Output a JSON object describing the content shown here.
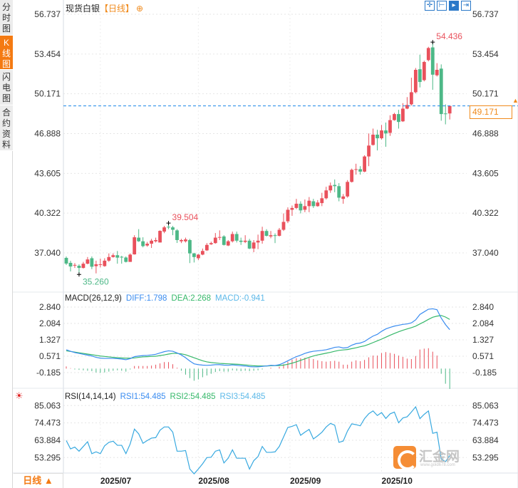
{
  "sidebar": {
    "tabs": [
      {
        "label": "分时图",
        "active": false
      },
      {
        "label": "K线图",
        "active": true
      },
      {
        "label": "闪电图",
        "active": false
      },
      {
        "label": "合约资料",
        "active": false
      }
    ]
  },
  "header": {
    "instrument": "现货白银",
    "period": "【日线】",
    "add_icon": "⊕"
  },
  "toolbar": {
    "icons": [
      "crosshair-icon",
      "range-icon",
      "zoom-fit-icon",
      "scroll-end-icon"
    ]
  },
  "price_tag": "49.171",
  "colors": {
    "up": "#e9515c",
    "down": "#4db887",
    "diff": "#3a8cf0",
    "dea": "#36b86a",
    "rsi": "#38a9e0",
    "last": "#1a86e8",
    "accent": "#f47a12"
  },
  "bottom": {
    "period_label": "日线 ▲"
  },
  "logo": {
    "name": "汇金网",
    "url": "www.gold678.com"
  },
  "chart_data": [
    {
      "type": "candlestick",
      "title": "现货白银",
      "y_ticks": [
        "56.737",
        "53.454",
        "50.171",
        "46.888",
        "43.605",
        "40.322",
        "37.040"
      ],
      "ylim": [
        35.0,
        57.9
      ],
      "annotations": {
        "high": "54.436",
        "high_index": 86,
        "local_high": "39.504",
        "local_high_index": 24,
        "low": "35.260",
        "low_index": 3
      },
      "last": 49.171,
      "x_labels": [
        {
          "label": "2025/07",
          "index": 8
        },
        {
          "label": "2025/08",
          "index": 31
        },
        {
          "label": "2025/09",
          "index": 52.5
        },
        {
          "label": "2025/10",
          "index": 74
        }
      ],
      "ohlc": [
        [
          36.63,
          36.75,
          36.04,
          36.16
        ],
        [
          36.22,
          36.39,
          35.51,
          35.92
        ],
        [
          36.0,
          36.2,
          35.8,
          36.05
        ],
        [
          35.98,
          36.1,
          35.26,
          35.8
        ],
        [
          35.8,
          36.3,
          35.75,
          36.15
        ],
        [
          36.15,
          36.7,
          36.1,
          36.5
        ],
        [
          36.6,
          36.75,
          35.7,
          35.9
        ],
        [
          35.95,
          36.4,
          35.35,
          36.1
        ],
        [
          36.05,
          36.57,
          35.85,
          36.1
        ],
        [
          35.95,
          36.6,
          35.9,
          36.4
        ],
        [
          36.4,
          37.0,
          36.3,
          36.7
        ],
        [
          36.7,
          37.0,
          36.65,
          36.85
        ],
        [
          36.85,
          37.2,
          36.15,
          36.65
        ],
        [
          36.72,
          36.8,
          36.15,
          36.68
        ],
        [
          36.66,
          36.75,
          36.25,
          36.3
        ],
        [
          36.3,
          37.0,
          36.3,
          36.9
        ],
        [
          36.92,
          38.5,
          36.9,
          38.33
        ],
        [
          38.3,
          39.0,
          37.95,
          38.0
        ],
        [
          38.0,
          38.33,
          37.5,
          37.6
        ],
        [
          37.65,
          37.95,
          37.55,
          37.8
        ],
        [
          37.8,
          38.2,
          37.45,
          38.05
        ],
        [
          38.0,
          38.3,
          37.9,
          38.1
        ],
        [
          37.9,
          38.9,
          37.9,
          38.86
        ],
        [
          38.8,
          39.27,
          38.67,
          39.15
        ],
        [
          39.2,
          39.504,
          39.0,
          39.15
        ],
        [
          39.15,
          39.27,
          38.5,
          38.95
        ],
        [
          38.9,
          39.0,
          37.86,
          38.1
        ],
        [
          38.0,
          38.2,
          37.85,
          38.1
        ],
        [
          38.0,
          38.3,
          37.9,
          38.15
        ],
        [
          38.1,
          38.2,
          36.2,
          37.0
        ],
        [
          37.0,
          37.05,
          36.25,
          36.7
        ],
        [
          36.6,
          36.95,
          36.45,
          36.9
        ],
        [
          36.9,
          37.4,
          36.85,
          37.2
        ],
        [
          37.25,
          37.85,
          37.2,
          37.7
        ],
        [
          37.75,
          37.97,
          37.7,
          37.85
        ],
        [
          37.85,
          38.68,
          37.8,
          38.3
        ],
        [
          38.3,
          38.9,
          38.1,
          38.35
        ],
        [
          38.4,
          38.5,
          37.65,
          37.7
        ],
        [
          37.65,
          38.1,
          37.6,
          38.0
        ],
        [
          38.0,
          38.8,
          37.9,
          38.6
        ],
        [
          38.6,
          38.8,
          37.9,
          38.05
        ],
        [
          38.05,
          38.3,
          37.7,
          37.95
        ],
        [
          37.95,
          38.5,
          37.85,
          38.05
        ],
        [
          38.05,
          38.2,
          37.35,
          37.4
        ],
        [
          37.4,
          38.1,
          37.1,
          37.9
        ],
        [
          37.9,
          38.55,
          37.35,
          38.05
        ],
        [
          38.05,
          39.2,
          37.8,
          38.85
        ],
        [
          38.85,
          39.0,
          38.4,
          38.45
        ],
        [
          38.4,
          38.85,
          38.25,
          38.5
        ],
        [
          38.5,
          38.65,
          37.85,
          38.45
        ],
        [
          38.45,
          39.1,
          38.4,
          38.95
        ],
        [
          38.95,
          40.3,
          38.85,
          39.6
        ],
        [
          39.65,
          40.8,
          39.5,
          40.6
        ],
        [
          40.6,
          40.95,
          40.1,
          40.75
        ],
        [
          40.75,
          41.5,
          40.65,
          41.1
        ],
        [
          41.1,
          41.3,
          40.3,
          40.55
        ],
        [
          40.6,
          41.45,
          40.4,
          40.9
        ],
        [
          40.9,
          41.65,
          40.4,
          41.35
        ],
        [
          41.3,
          41.5,
          40.75,
          40.9
        ],
        [
          40.9,
          41.4,
          40.85,
          41.2
        ],
        [
          41.15,
          42.0,
          40.9,
          41.55
        ],
        [
          41.55,
          42.5,
          41.45,
          42.2
        ],
        [
          42.2,
          42.85,
          42.0,
          42.6
        ],
        [
          42.65,
          43.1,
          42.05,
          42.55
        ],
        [
          42.55,
          42.8,
          41.3,
          41.6
        ],
        [
          41.5,
          41.9,
          41.1,
          41.7
        ],
        [
          41.7,
          43.05,
          41.6,
          42.9
        ],
        [
          42.9,
          44.0,
          42.85,
          43.9
        ],
        [
          43.9,
          44.4,
          43.5,
          43.95
        ],
        [
          43.95,
          44.2,
          43.5,
          43.75
        ],
        [
          43.75,
          45.1,
          43.7,
          45.0
        ],
        [
          45.0,
          46.9,
          44.2,
          45.9
        ],
        [
          45.95,
          47.3,
          45.9,
          46.8
        ],
        [
          46.8,
          47.2,
          45.5,
          46.5
        ],
        [
          46.5,
          47.6,
          46.4,
          47.15
        ],
        [
          47.15,
          47.8,
          45.8,
          46.9
        ],
        [
          46.95,
          48.4,
          46.7,
          48.0
        ],
        [
          48.0,
          48.6,
          47.95,
          48.5
        ],
        [
          48.5,
          48.85,
          47.3,
          47.85
        ],
        [
          47.9,
          49.4,
          47.85,
          48.95
        ],
        [
          48.95,
          49.9,
          48.9,
          49.25
        ],
        [
          49.3,
          51.5,
          49.2,
          50.3
        ],
        [
          50.3,
          52.3,
          50.2,
          52.15
        ],
        [
          52.2,
          53.4,
          50.7,
          51.15
        ],
        [
          51.3,
          52.9,
          51.2,
          52.8
        ],
        [
          52.95,
          54.05,
          52.85,
          53.95
        ],
        [
          54.0,
          54.436,
          50.5,
          51.75
        ],
        [
          51.7,
          52.7,
          51.6,
          52.15
        ],
        [
          52.25,
          52.6,
          47.95,
          48.5
        ],
        [
          48.55,
          49.3,
          47.65,
          48.5
        ],
        [
          48.55,
          49.2,
          48.05,
          49.171
        ]
      ]
    },
    {
      "type": "line",
      "title": "MACD(26,12,9)",
      "legend": [
        {
          "label": "DIFF:1.798"
        },
        {
          "label": "DEA:2.268"
        },
        {
          "label": "MACD:-0.941"
        }
      ],
      "y_ticks": [
        "2.840",
        "2.084",
        "1.327",
        "0.571",
        "-0.185"
      ],
      "diff": [
        0.87,
        0.8,
        0.74,
        0.7,
        0.66,
        0.62,
        0.58,
        0.52,
        0.48,
        0.47,
        0.47,
        0.47,
        0.46,
        0.44,
        0.41,
        0.46,
        0.55,
        0.58,
        0.6,
        0.61,
        0.63,
        0.66,
        0.72,
        0.78,
        0.82,
        0.8,
        0.72,
        0.63,
        0.5,
        0.35,
        0.22,
        0.18,
        0.16,
        0.15,
        0.16,
        0.18,
        0.18,
        0.16,
        0.15,
        0.17,
        0.15,
        0.13,
        0.12,
        0.09,
        0.08,
        0.08,
        0.1,
        0.12,
        0.15,
        0.14,
        0.18,
        0.26,
        0.36,
        0.46,
        0.55,
        0.62,
        0.7,
        0.76,
        0.8,
        0.82,
        0.84,
        0.87,
        0.92,
        0.98,
        1.0,
        0.95,
        0.97,
        1.08,
        1.15,
        1.18,
        1.25,
        1.38,
        1.5,
        1.58,
        1.72,
        1.83,
        1.9,
        1.96,
        2.0,
        2.04,
        2.06,
        2.11,
        2.25,
        2.5,
        2.62,
        2.74,
        2.76,
        2.72,
        2.33,
        2.03,
        1.798
      ],
      "dea": [
        0.82,
        0.79,
        0.76,
        0.73,
        0.7,
        0.67,
        0.64,
        0.61,
        0.58,
        0.56,
        0.54,
        0.52,
        0.5,
        0.49,
        0.48,
        0.48,
        0.49,
        0.52,
        0.54,
        0.55,
        0.56,
        0.57,
        0.6,
        0.63,
        0.67,
        0.7,
        0.7,
        0.68,
        0.64,
        0.57,
        0.5,
        0.43,
        0.36,
        0.31,
        0.28,
        0.26,
        0.24,
        0.23,
        0.22,
        0.21,
        0.2,
        0.19,
        0.17,
        0.15,
        0.13,
        0.12,
        0.12,
        0.12,
        0.13,
        0.14,
        0.14,
        0.16,
        0.2,
        0.25,
        0.31,
        0.38,
        0.45,
        0.52,
        0.58,
        0.63,
        0.67,
        0.71,
        0.75,
        0.8,
        0.84,
        0.86,
        0.88,
        0.92,
        0.96,
        1.01,
        1.05,
        1.12,
        1.2,
        1.28,
        1.36,
        1.45,
        1.54,
        1.62,
        1.7,
        1.77,
        1.83,
        1.89,
        1.96,
        2.06,
        2.16,
        2.27,
        2.37,
        2.42,
        2.45,
        2.38,
        2.268
      ]
    },
    {
      "type": "line",
      "title": "RSI(14,14,14)",
      "legend": [
        {
          "label": "RSI1:54.485"
        },
        {
          "label": "RSI2:54.485"
        },
        {
          "label": "RSI3:54.485"
        }
      ],
      "y_ticks": [
        "85.063",
        "74.473",
        "63.884",
        "53.295"
      ],
      "rsi": [
        63.7,
        58.6,
        59.7,
        57.2,
        60.1,
        63.0,
        55.7,
        56.8,
        55.7,
        60.5,
        62.6,
        63.3,
        60.8,
        60.8,
        55.7,
        61.6,
        70.7,
        67.8,
        62.0,
        63.7,
        65.2,
        65.5,
        70.0,
        72.0,
        72.0,
        68.8,
        57.2,
        57.2,
        57.6,
        46.3,
        43.4,
        46.3,
        49.5,
        53.3,
        53.5,
        57.2,
        58.0,
        50.0,
        52.9,
        58.0,
        52.9,
        52.9,
        52.9,
        46.3,
        51.4,
        53.9,
        60.1,
        56.5,
        56.5,
        56.8,
        60.1,
        65.9,
        71.7,
        72.4,
        73.4,
        66.9,
        68.8,
        70.5,
        64.7,
        66.6,
        68.8,
        72.0,
        74.2,
        73.1,
        62.6,
        63.4,
        69.5,
        73.9,
        73.4,
        72.7,
        77.1,
        80.1,
        81.8,
        79.0,
        80.8,
        77.2,
        80.0,
        81.1,
        74.6,
        77.5,
        78.2,
        81.1,
        84.3,
        77.1,
        79.7,
        81.8,
        68.1,
        68.8,
        52.5,
        50.8,
        54.485
      ]
    }
  ]
}
